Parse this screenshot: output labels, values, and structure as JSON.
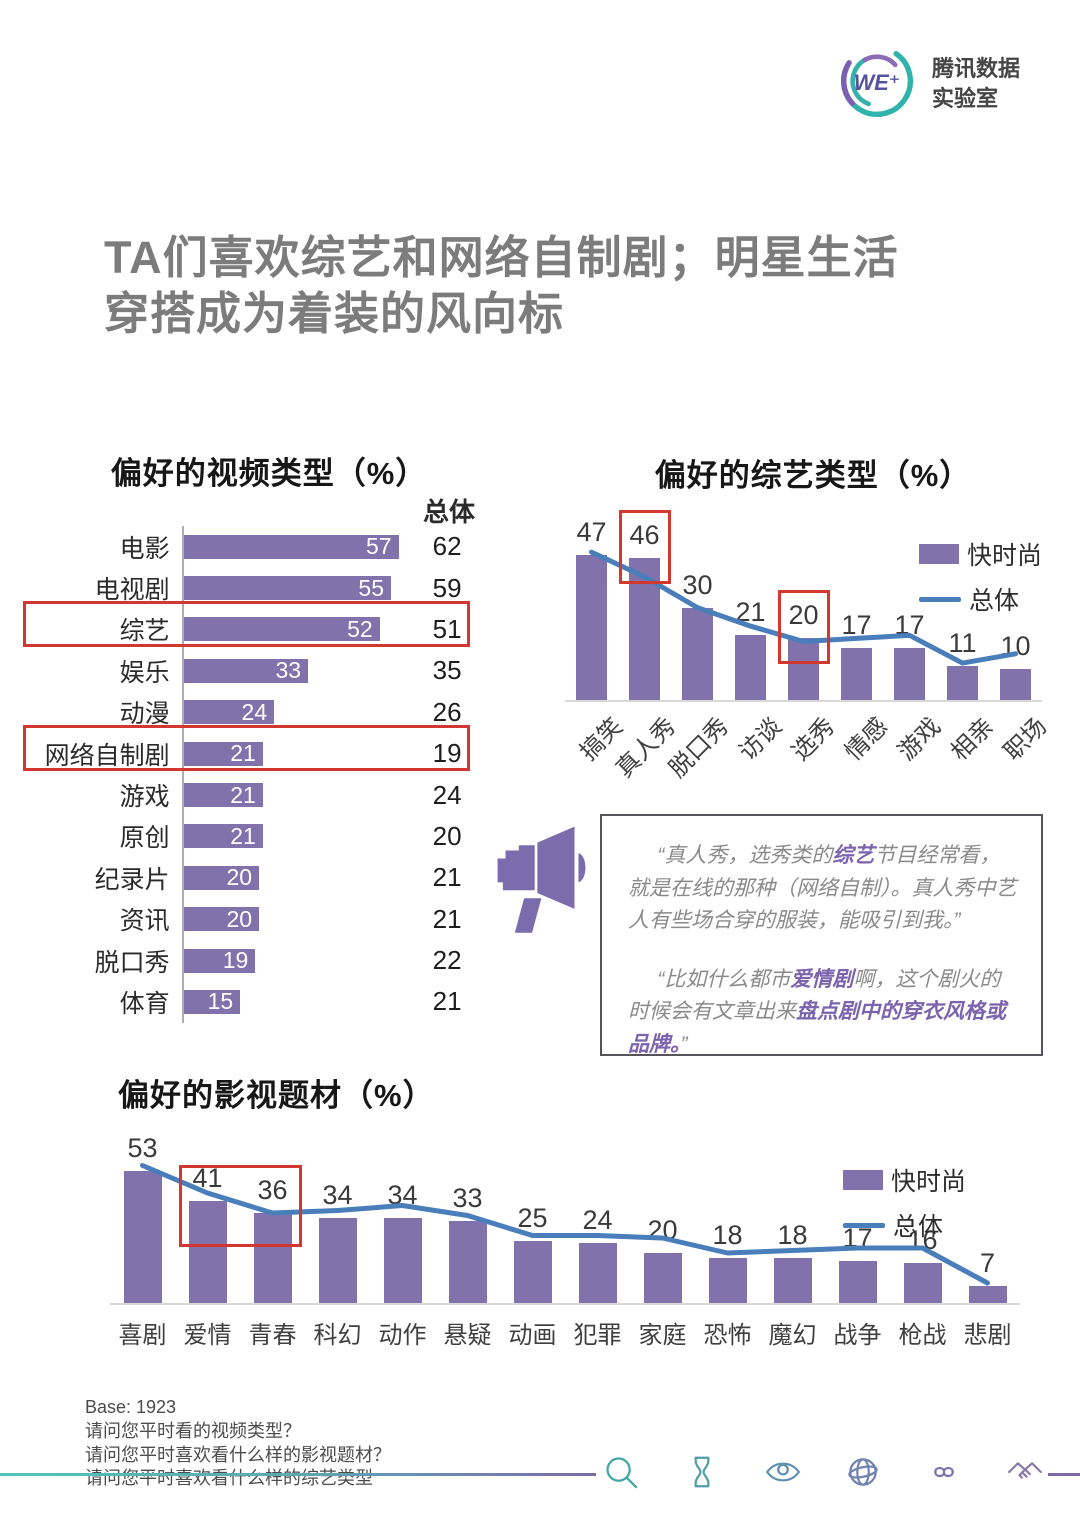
{
  "logo": {
    "icon": "we-plus-logo-icon",
    "mark_text": "WE⁺",
    "brand_line1": "腾讯数据",
    "brand_line2": "实验室"
  },
  "title": {
    "line1": "TA们喜欢综艺和网络自制剧；明星生活",
    "line2": "穿搭成为着装的风向标"
  },
  "colors": {
    "bar_purple": "#8172AC",
    "line_blue": "#4A7EBB",
    "highlight_red": "#D2382F",
    "title_gray": "#7C7C7C",
    "quote_purple": "#7B63AE"
  },
  "chart_data": [
    {
      "id": "video_types",
      "type": "bar",
      "orientation": "horizontal",
      "title": "偏好的视频类型（%）",
      "column_header": "总体",
      "categories": [
        "电影",
        "电视剧",
        "综艺",
        "娱乐",
        "动漫",
        "网络自制剧",
        "游戏",
        "原创",
        "纪录片",
        "资讯",
        "脱口秀",
        "体育"
      ],
      "series": [
        {
          "name": "快时尚",
          "values": [
            57,
            55,
            52,
            33,
            24,
            21,
            21,
            21,
            20,
            20,
            19,
            15
          ]
        },
        {
          "name": "总体",
          "values": [
            62,
            59,
            51,
            35,
            26,
            19,
            24,
            20,
            21,
            21,
            22,
            21
          ]
        }
      ],
      "highlighted_categories": [
        "综艺",
        "网络自制剧"
      ],
      "xlim": [
        0,
        62
      ],
      "grid": false
    },
    {
      "id": "variety_types",
      "type": "bar-line",
      "title": "偏好的综艺类型（%）",
      "categories": [
        "搞笑",
        "真人秀",
        "脱口秀",
        "访谈",
        "选秀",
        "情感",
        "游戏",
        "相亲",
        "职场"
      ],
      "series": [
        {
          "name": "快时尚",
          "type": "bar",
          "values": [
            47,
            46,
            30,
            21,
            20,
            17,
            17,
            11,
            10
          ]
        },
        {
          "name": "总体",
          "type": "line",
          "values": [
            48,
            40,
            30,
            24,
            19,
            20,
            21,
            12,
            15
          ],
          "values_estimated": true
        }
      ],
      "data_labels": [
        47,
        46,
        30,
        21,
        20,
        17,
        17,
        11,
        10
      ],
      "highlighted_categories": [
        "真人秀",
        "选秀"
      ],
      "legend_position": "right",
      "ylim": [
        0,
        52
      ],
      "grid": false
    },
    {
      "id": "film_genres",
      "type": "bar-line",
      "title": "偏好的影视题材（%）",
      "categories": [
        "喜剧",
        "爱情",
        "青春",
        "科幻",
        "动作",
        "悬疑",
        "动画",
        "犯罪",
        "家庭",
        "恐怖",
        "魔幻",
        "战争",
        "枪战",
        "悲剧"
      ],
      "series": [
        {
          "name": "快时尚",
          "type": "bar",
          "values": [
            53,
            41,
            36,
            34,
            34,
            33,
            25,
            24,
            20,
            18,
            18,
            17,
            16,
            7
          ]
        },
        {
          "name": "总体",
          "type": "line",
          "values": [
            55,
            44,
            36,
            37,
            39,
            35,
            27,
            27,
            26,
            20,
            21,
            22,
            22,
            8
          ],
          "values_estimated": true
        }
      ],
      "data_labels": [
        53,
        41,
        36,
        34,
        34,
        33,
        25,
        24,
        20,
        18,
        18,
        17,
        16,
        7
      ],
      "highlighted_categories": [
        "爱情",
        "青春"
      ],
      "legend_position": "top-right",
      "ylim": [
        0,
        60
      ],
      "grid": false
    }
  ],
  "quote_section": {
    "icon": "megaphone-icon",
    "quotes": [
      {
        "segments": [
          {
            "t": "“真人秀，选秀类的",
            "em": false
          },
          {
            "t": "综艺",
            "em": true
          },
          {
            "t": "节目经常看，就是在线的那种（网络自制）。真人秀中艺人有些场合穿的服装，能吸引到我。”",
            "em": false
          }
        ]
      },
      {
        "segments": [
          {
            "t": "“比如什么都市",
            "em": false
          },
          {
            "t": "爱情剧",
            "em": true
          },
          {
            "t": "啊，这个剧火的时候会有文章出来",
            "em": false
          },
          {
            "t": "盘点剧中的穿衣风格或品牌。",
            "em": true
          },
          {
            "t": "”",
            "em": false
          }
        ]
      }
    ]
  },
  "footer": {
    "base": "Base: 1923",
    "questions": [
      "请问您平时看的视频类型？",
      "请问您平时喜欢看什么样的影视题材？",
      "请问您平时喜欢看什么样的综艺类型"
    ],
    "icons": [
      "search-icon",
      "hourglass-icon",
      "eye-icon",
      "globe-icon",
      "infinity-icon",
      "handshake-icon"
    ]
  }
}
